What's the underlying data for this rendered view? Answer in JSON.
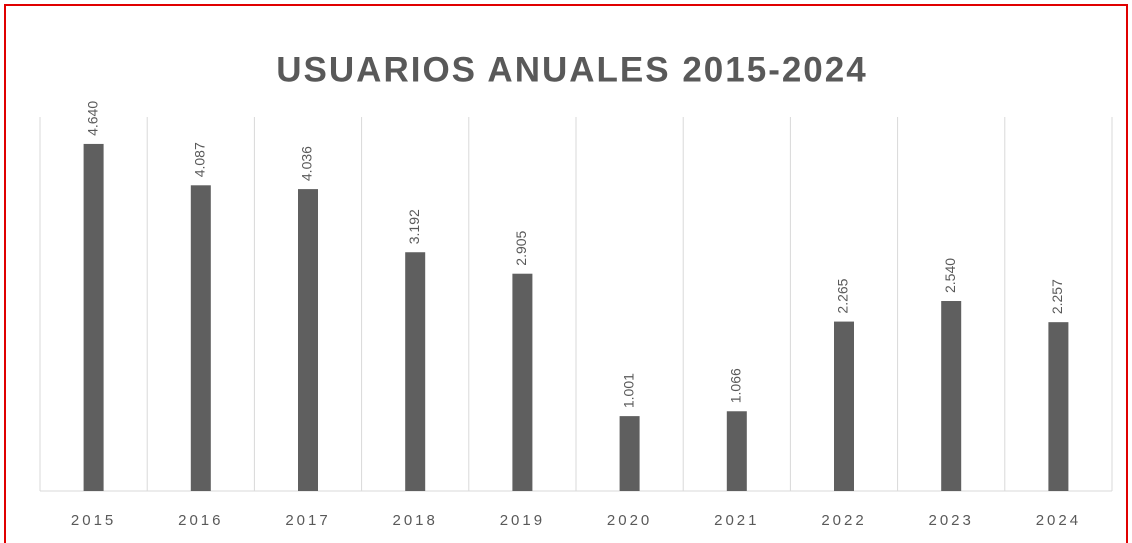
{
  "chart_data": {
    "type": "bar",
    "title": "USUARIOS ANUALES 2015-2024",
    "categories": [
      "2015",
      "2016",
      "2017",
      "2018",
      "2019",
      "2020",
      "2021",
      "2022",
      "2023",
      "2024"
    ],
    "values": [
      4640,
      4087,
      4036,
      3192,
      2905,
      1001,
      1066,
      2265,
      2540,
      2257
    ],
    "value_labels": [
      "4.640",
      "4.087",
      "4.036",
      "3.192",
      "2.905",
      "1.001",
      "1.066",
      "2.265",
      "2.540",
      "2.257"
    ],
    "color": "#5f5f5f",
    "ylim": [
      0,
      5000
    ]
  }
}
